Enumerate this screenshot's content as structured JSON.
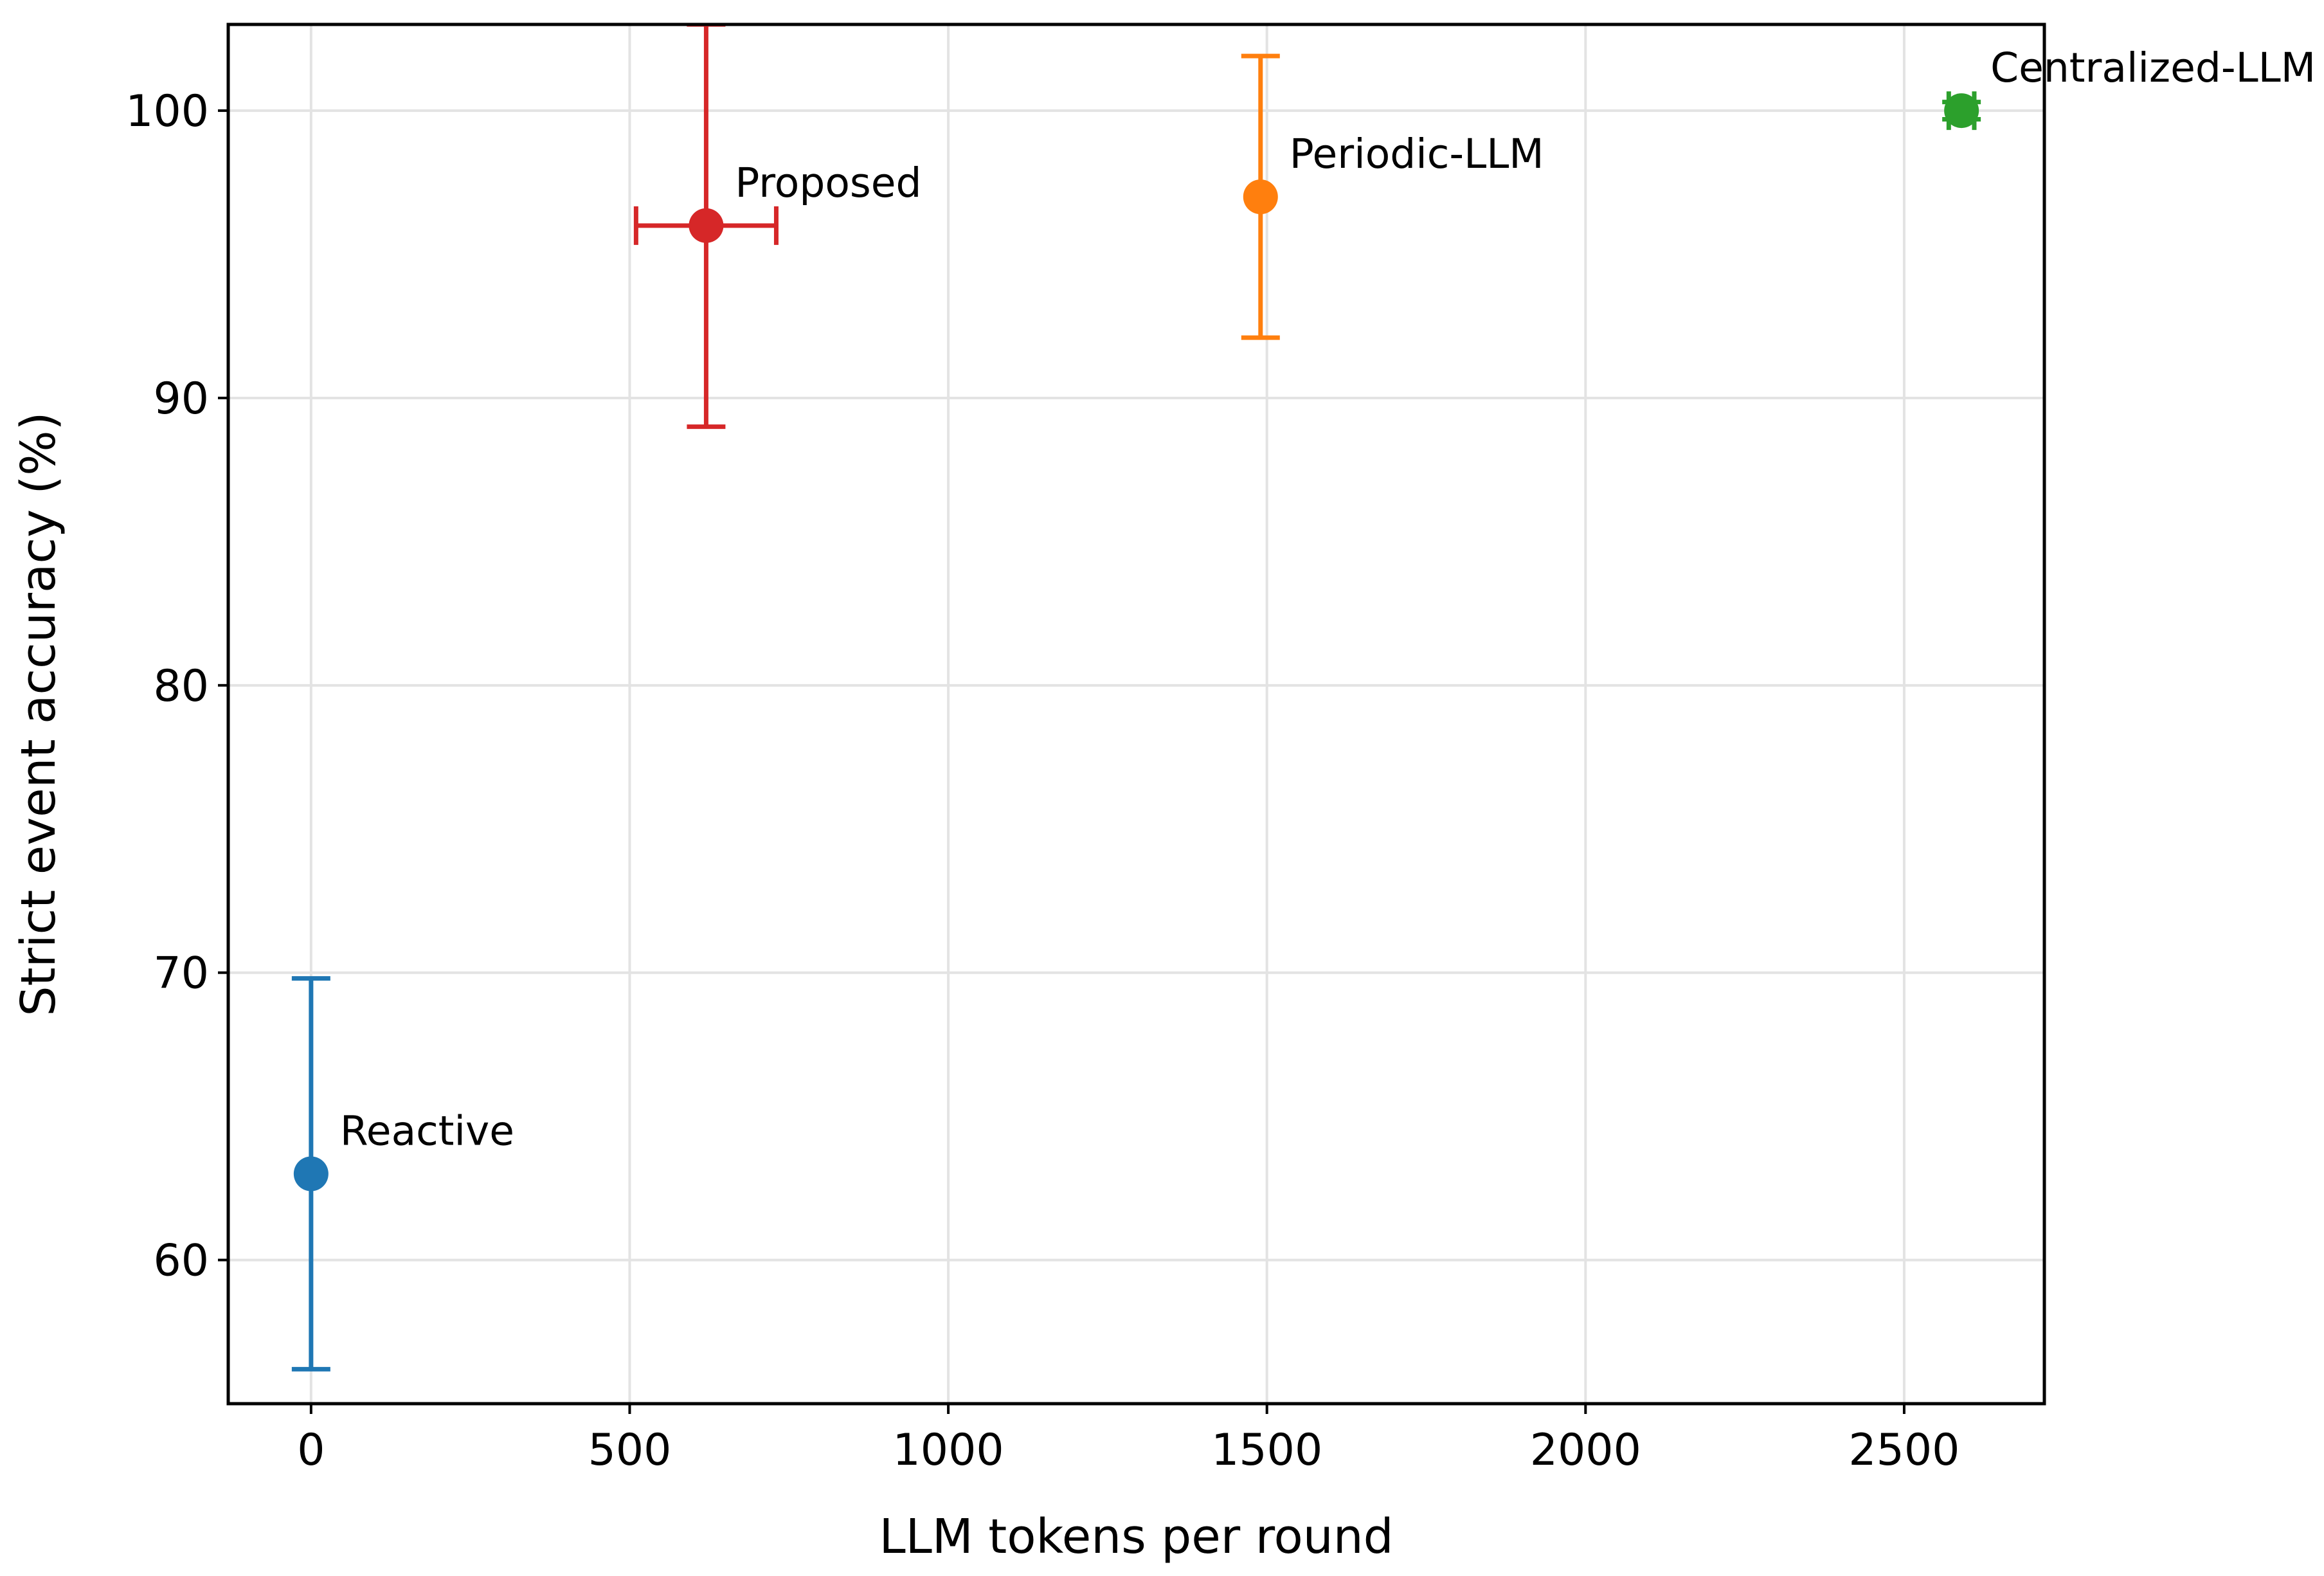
{
  "chart_data": {
    "type": "scatter",
    "title": "",
    "xlabel": "LLM tokens per round",
    "ylabel": "Strict event accuracy (%)",
    "xlim": [
      -130,
      2720
    ],
    "ylim": [
      55,
      103
    ],
    "xticks": [
      0,
      500,
      1000,
      1500,
      2000,
      2500
    ],
    "yticks": [
      60,
      70,
      80,
      90,
      100
    ],
    "grid": true,
    "legend": "none",
    "series": [
      {
        "name": "Reactive",
        "x": 0,
        "y": 63,
        "y_err": 6.8,
        "x_err": 0,
        "color": "#1f77b4"
      },
      {
        "name": "Proposed",
        "x": 620,
        "y": 96,
        "y_err": 7,
        "x_err": 110,
        "color": "#d62728"
      },
      {
        "name": "Periodic-LLM",
        "x": 1490,
        "y": 97,
        "y_err": 4.9,
        "x_err": 0,
        "color": "#ff7f0e"
      },
      {
        "name": "Centralized-LLM",
        "x": 2590,
        "y": 100,
        "y_err": 0.3,
        "x_err": 20,
        "color": "#2ca02c"
      }
    ]
  }
}
